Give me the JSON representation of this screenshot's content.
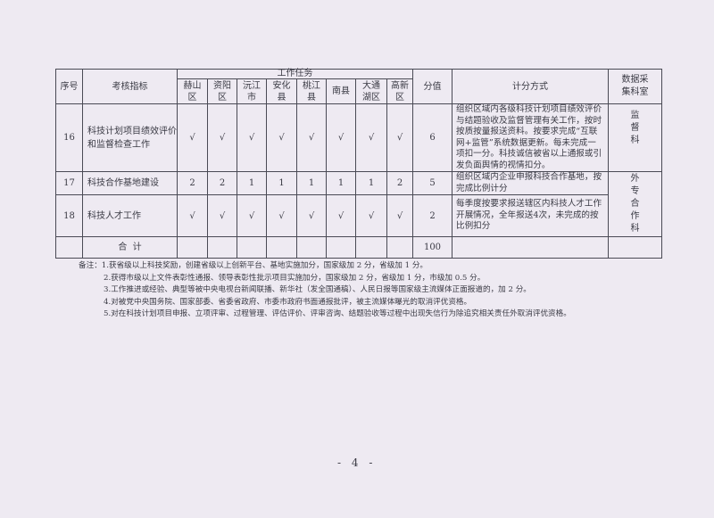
{
  "table": {
    "header": {
      "seq": "序号",
      "indicator": "考核指标",
      "tasks": "工作任务",
      "districts": [
        "赫山\n区",
        "资阳\n区",
        "沅江\n市",
        "安化\n县",
        "桃江\n县",
        "南县",
        "大通\n湖区",
        "高新\n区"
      ],
      "score": "分值",
      "method": "计分方式",
      "dept": "数据采\n集科室"
    },
    "rows": [
      {
        "seq": "16",
        "indicator": "科技计划项目绩效评价和监督检查工作",
        "marks": [
          "√",
          "√",
          "√",
          "√",
          "√",
          "√",
          "√",
          "√"
        ],
        "score": "6",
        "method": "组织区域内各级科技计划项目绩效评价与结题验收及监督管理有关工作，按时按质按量报送资料。按要求完成“互联网+监管”系统数据更新。每未完成一项扣一分。科技诚信被省以上通报或引发负面舆情的视情扣分。",
        "dept": "监\n督\n科"
      },
      {
        "seq": "17",
        "indicator": "科技合作基地建设",
        "marks": [
          "2",
          "2",
          "1",
          "1",
          "1",
          "1",
          "1",
          "2"
        ],
        "score": "5",
        "method": "组织区域内企业申报科技合作基地，按完成比例计分",
        "dept": "外\n专\n合\n作\n科"
      },
      {
        "seq": "18",
        "indicator": "科技人才工作",
        "marks": [
          "√",
          "√",
          "√",
          "√",
          "√",
          "√",
          "√",
          "√"
        ],
        "score": "2",
        "method": "每季度按要求报送辖区内科技人才工作开展情况，全年报送4次，未完成的按比例扣分"
      }
    ],
    "total": {
      "label": "合  计",
      "score": "100"
    }
  },
  "notes": [
    "备注：1.获省级以上科技奖励，创建省级以上创新平台、基地实施加分，国家级加 2 分，省级加 1 分。",
    "2.获得市级以上文件表彰性通报、领导表彰性批示项目实施加分，国家级加 2 分，省级加 1 分，市级加 0.5 分。",
    "3.工作推进或经验、典型等被中央电视台新闻联播、新华社（发全国通稿）、人民日报等国家级主流媒体正面报道的，加 2 分。",
    "4.对被党中央国务院、国家部委、省委省政府、市委市政府书面通报批评，被主流媒体曝光的取消评优资格。",
    "5.对在科技计划项目申报、立项评审、过程管理、评估评价、评审咨询、结题验收等过程中出现失信行为除追究相关责任外取消评优资格。"
  ],
  "page_number": "- 4 -"
}
